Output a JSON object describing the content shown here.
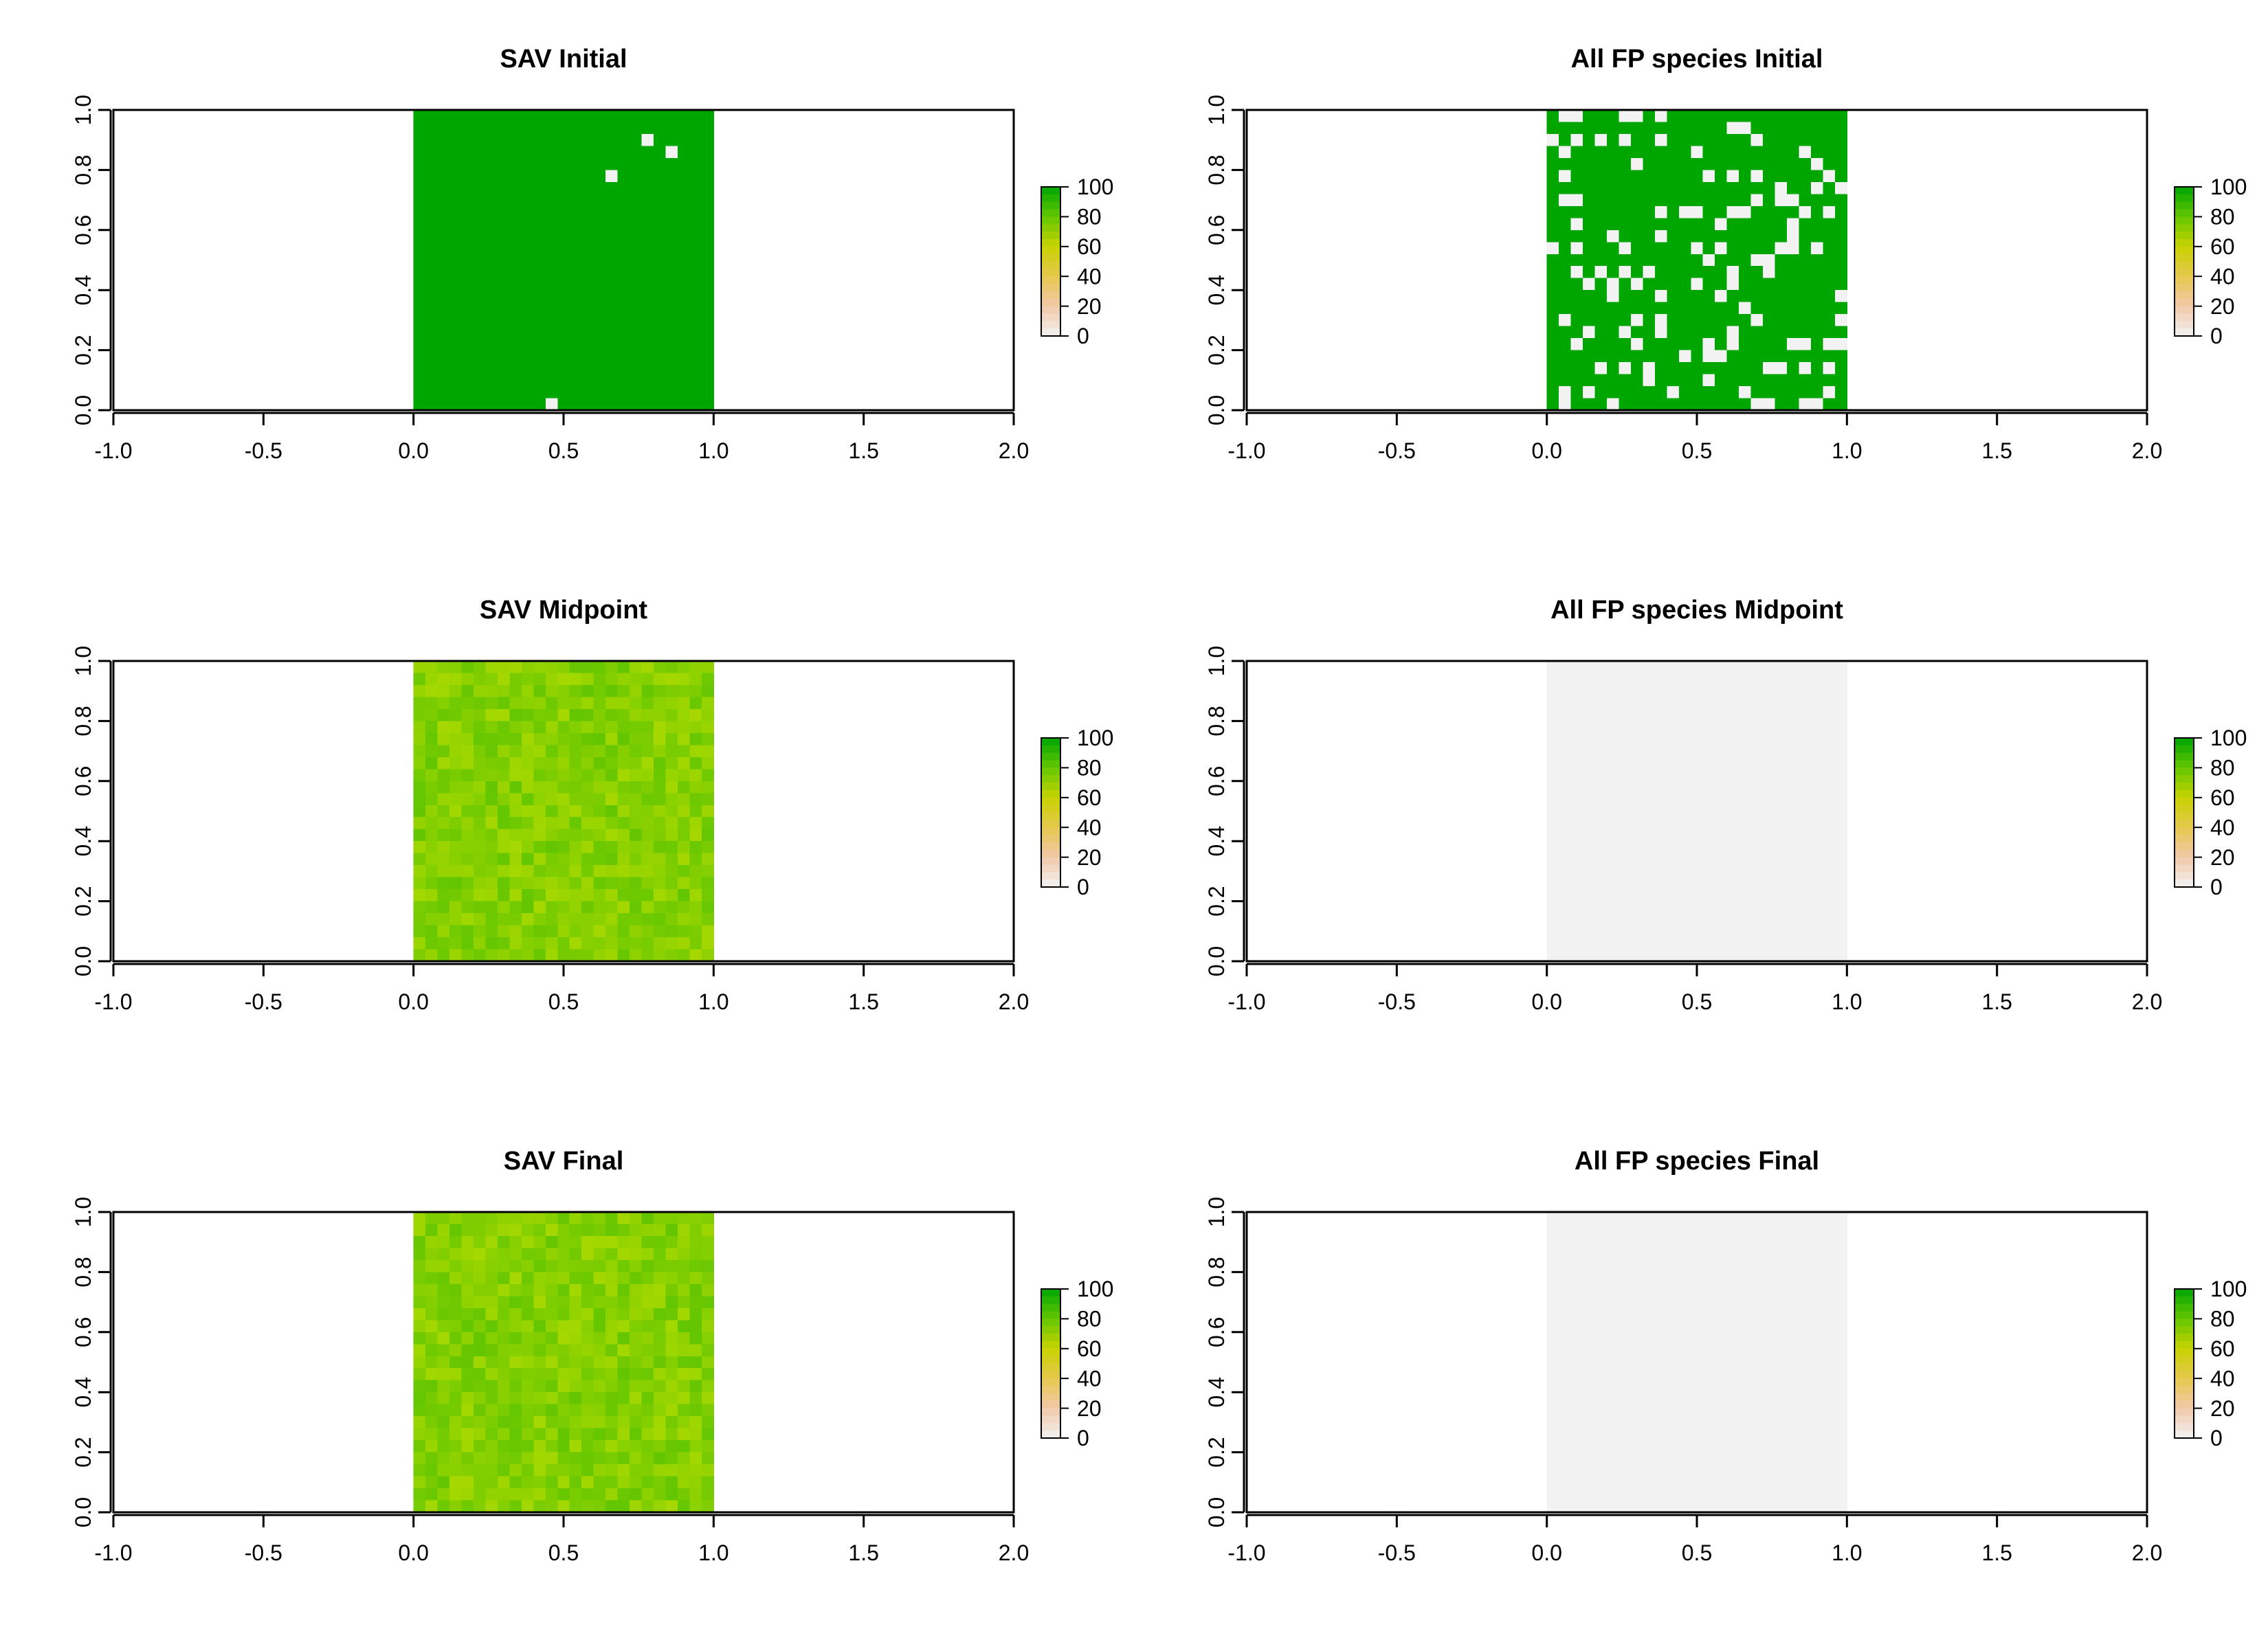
{
  "chart_data": [
    {
      "type": "heatmap",
      "title": "SAV Initial",
      "xlim": [
        -1.0,
        2.0
      ],
      "ylim": [
        0.0,
        1.0
      ],
      "x_ticks": [
        "-1.0",
        "-0.5",
        "0.0",
        "0.5",
        "1.0",
        "1.5",
        "2.0"
      ],
      "y_ticks": [
        "0.0",
        "0.2",
        "0.4",
        "0.6",
        "0.8",
        "1.0"
      ],
      "raster_extent": {
        "x": [
          0.0,
          1.0
        ],
        "y": [
          0.0,
          1.0
        ]
      },
      "grid": [
        25,
        25
      ],
      "value_range": [
        0,
        100
      ],
      "state": "full",
      "empty_cells": [
        [
          19,
          2
        ],
        [
          21,
          3
        ],
        [
          16,
          5
        ],
        [
          11,
          24
        ]
      ],
      "colorbar": {
        "ticks": [
          "0",
          "20",
          "40",
          "60",
          "80",
          "100"
        ],
        "range": [
          0,
          100
        ]
      }
    },
    {
      "type": "heatmap",
      "title": "All FP species Initial",
      "xlim": [
        -1.0,
        2.0
      ],
      "ylim": [
        0.0,
        1.0
      ],
      "x_ticks": [
        "-1.0",
        "-0.5",
        "0.0",
        "0.5",
        "1.0",
        "1.5",
        "2.0"
      ],
      "y_ticks": [
        "0.0",
        "0.2",
        "0.4",
        "0.6",
        "0.8",
        "1.0"
      ],
      "raster_extent": {
        "x": [
          0.0,
          1.0
        ],
        "y": [
          0.0,
          1.0
        ]
      },
      "grid": [
        25,
        25
      ],
      "value_range": [
        0,
        100
      ],
      "state": "patchy",
      "empty_fraction": 0.2,
      "colorbar": {
        "ticks": [
          "0",
          "20",
          "40",
          "60",
          "80",
          "100"
        ],
        "range": [
          0,
          100
        ]
      }
    },
    {
      "type": "heatmap",
      "title": "SAV Midpoint",
      "xlim": [
        -1.0,
        2.0
      ],
      "ylim": [
        0.0,
        1.0
      ],
      "x_ticks": [
        "-1.0",
        "-0.5",
        "0.0",
        "0.5",
        "1.0",
        "1.5",
        "2.0"
      ],
      "y_ticks": [
        "0.0",
        "0.2",
        "0.4",
        "0.6",
        "0.8",
        "1.0"
      ],
      "raster_extent": {
        "x": [
          0.0,
          1.0
        ],
        "y": [
          0.0,
          1.0
        ]
      },
      "grid": [
        25,
        25
      ],
      "value_range": [
        0,
        100
      ],
      "state": "mixed",
      "cell_values_approx": [
        68,
        72
      ],
      "colorbar": {
        "ticks": [
          "0",
          "20",
          "40",
          "60",
          "80",
          "100"
        ],
        "range": [
          0,
          100
        ]
      }
    },
    {
      "type": "heatmap",
      "title": "All FP species Midpoint",
      "xlim": [
        -1.0,
        2.0
      ],
      "ylim": [
        0.0,
        1.0
      ],
      "x_ticks": [
        "-1.0",
        "-0.5",
        "0.0",
        "0.5",
        "1.0",
        "1.5",
        "2.0"
      ],
      "y_ticks": [
        "0.0",
        "0.2",
        "0.4",
        "0.6",
        "0.8",
        "1.0"
      ],
      "raster_extent": {
        "x": [
          0.0,
          1.0
        ],
        "y": [
          0.0,
          1.0
        ]
      },
      "grid": [
        25,
        25
      ],
      "value_range": [
        0,
        100
      ],
      "state": "zero",
      "colorbar": {
        "ticks": [
          "0",
          "20",
          "40",
          "60",
          "80",
          "100"
        ],
        "range": [
          0,
          100
        ]
      }
    },
    {
      "type": "heatmap",
      "title": "SAV Final",
      "xlim": [
        -1.0,
        2.0
      ],
      "ylim": [
        0.0,
        1.0
      ],
      "x_ticks": [
        "-1.0",
        "-0.5",
        "0.0",
        "0.5",
        "1.0",
        "1.5",
        "2.0"
      ],
      "y_ticks": [
        "0.0",
        "0.2",
        "0.4",
        "0.6",
        "0.8",
        "1.0"
      ],
      "raster_extent": {
        "x": [
          0.0,
          1.0
        ],
        "y": [
          0.0,
          1.0
        ]
      },
      "grid": [
        25,
        25
      ],
      "value_range": [
        0,
        100
      ],
      "state": "mixed",
      "cell_values_approx": [
        68,
        72
      ],
      "colorbar": {
        "ticks": [
          "0",
          "20",
          "40",
          "60",
          "80",
          "100"
        ],
        "range": [
          0,
          100
        ]
      }
    },
    {
      "type": "heatmap",
      "title": "All FP species Final",
      "xlim": [
        -1.0,
        2.0
      ],
      "ylim": [
        0.0,
        1.0
      ],
      "x_ticks": [
        "-1.0",
        "-0.5",
        "0.0",
        "0.5",
        "1.0",
        "1.5",
        "2.0"
      ],
      "y_ticks": [
        "0.0",
        "0.2",
        "0.4",
        "0.6",
        "0.8",
        "1.0"
      ],
      "raster_extent": {
        "x": [
          0.0,
          1.0
        ],
        "y": [
          0.0,
          1.0
        ]
      },
      "grid": [
        25,
        25
      ],
      "value_range": [
        0,
        100
      ],
      "state": "zero",
      "colorbar": {
        "ticks": [
          "0",
          "20",
          "40",
          "60",
          "80",
          "100"
        ],
        "range": [
          0,
          100
        ]
      }
    }
  ],
  "colors": {
    "full": "#00a600",
    "mixed_high": "#63c600",
    "mixed_low": "#a6d800",
    "zero": "#f2f2f2",
    "colorbar_stops": [
      "#f2f2f2",
      "#f1c8a8",
      "#e6c84e",
      "#c8d200",
      "#63c600",
      "#00a600"
    ],
    "axis": "#000000"
  }
}
